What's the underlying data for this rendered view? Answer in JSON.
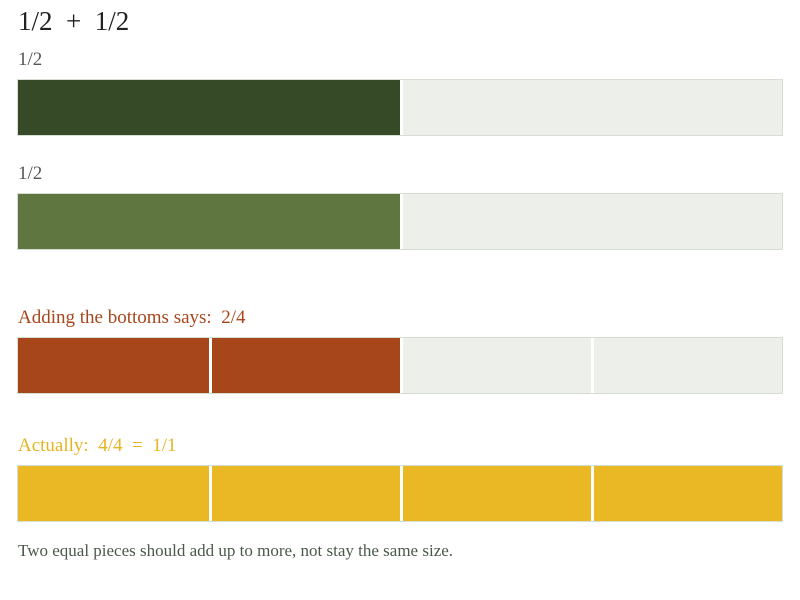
{
  "title": "1/2  +  1/2",
  "rows": [
    {
      "label": "1/2",
      "label_color": "#555555",
      "parts": 2,
      "filled": 1,
      "fill_color": "#374a28"
    },
    {
      "label": "1/2",
      "label_color": "#555555",
      "parts": 2,
      "filled": 1,
      "fill_color": "#5f7640"
    },
    {
      "label": "Adding the bottoms says:  2/4",
      "label_color": "#a8461b",
      "parts": 4,
      "filled": 2,
      "fill_color": "#a8461b"
    },
    {
      "label": "Actually:  4/4  =  1/1",
      "label_color": "#e6b422",
      "parts": 4,
      "filled": 4,
      "fill_color": "#e9b824"
    }
  ],
  "empty_color": "#edf0ea",
  "note": "Two equal pieces should add up to more, not stay the same size."
}
